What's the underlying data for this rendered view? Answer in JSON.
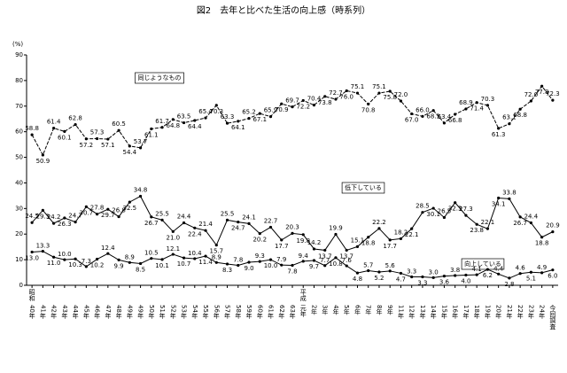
{
  "chart_data": {
    "type": "line",
    "title": "図2　去年と比べた生活の向上感（時系列）",
    "y_label": "(%)",
    "era_labels": [
      "昭和",
      "平成"
    ],
    "categories": [
      "40年",
      "41年",
      "42年",
      "43年",
      "44年",
      "45年",
      "46年",
      "47年",
      "48年",
      "49年",
      "49年",
      "50年",
      "51年",
      "52年",
      "53年",
      "54年",
      "55年",
      "56年",
      "57年",
      "58年",
      "59年",
      "60年",
      "61年",
      "62年",
      "63年",
      "元年",
      "2年",
      "3年",
      "4年",
      "5年",
      "6年",
      "7年",
      "8年",
      "9年",
      "11年",
      "12年",
      "13年",
      "14年",
      "15年",
      "16年",
      "17年",
      "18年",
      "19年",
      "20年",
      "21年",
      "22年",
      "23年",
      "24年",
      "今回調査"
    ],
    "ylim": [
      0,
      90
    ],
    "yticks": [
      0,
      10,
      20,
      30,
      40,
      50,
      60,
      70,
      80,
      90
    ],
    "series": [
      {
        "name": "同じようなもの",
        "color": "#000000",
        "values": [
          58.8,
          50.9,
          61.4,
          60.1,
          62.8,
          57.2,
          57.3,
          57.1,
          60.5,
          54.4,
          53.7,
          61.1,
          61.7,
          64.8,
          63.5,
          64.4,
          65.4,
          70.3,
          63.3,
          64.1,
          65.2,
          67.1,
          65.9,
          70.9,
          69.7,
          72.2,
          70.4,
          73.8,
          72.7,
          76.0,
          75.1,
          70.8,
          75.1,
          75.8,
          72.0,
          67.0,
          66.0,
          68.3,
          63.4,
          66.8,
          68.9,
          71.4,
          70.3,
          61.3,
          63.1,
          68.8,
          72.0,
          77.8,
          72.3
        ],
        "value_labels": [
          "58.8",
          "50.9",
          "61.4",
          "60.1",
          "62.8",
          "57.2",
          "57.3",
          "57.1",
          "60.5",
          "54.4",
          "53.7",
          "61.1",
          "61.7",
          "64.8",
          "63.5",
          "64.4",
          "65.4",
          "70.3",
          "63.3",
          "64.1",
          "65.2",
          "67.1",
          "65.9",
          "70.9",
          "69.7",
          "72.2",
          "70.4",
          "73.8",
          "72.7",
          "76.0",
          "75.1",
          "70.8",
          "75.1",
          "75.8",
          "72.0",
          "67.0",
          "66.0",
          "68.3",
          "63.4",
          "66.8",
          "68.9",
          "71.4",
          "70.3",
          "61.3",
          "63.1",
          "68.8",
          "72.0",
          "77.8",
          "72.3"
        ]
      },
      {
        "name": "低下している",
        "color": "#000000",
        "values": [
          24.5,
          29.3,
          24.2,
          26.3,
          24.7,
          30.7,
          27.8,
          29.7,
          26.8,
          32.5,
          34.8,
          26.7,
          25.5,
          21.0,
          24.4,
          22.4,
          21.4,
          15.7,
          25.5,
          24.7,
          24.1,
          20.2,
          22.7,
          17.7,
          20.3,
          19.8,
          14.2,
          13.7,
          19.9,
          13.7,
          15.1,
          18.8,
          22.2,
          17.7,
          18.2,
          22.1,
          28.5,
          30.1,
          26.5,
          32.3,
          27.3,
          23.8,
          22.1,
          34.1,
          33.8,
          26.7,
          24.4,
          18.8,
          20.9
        ],
        "value_labels": [
          "24.5",
          "29.3",
          "24.2",
          "26.3",
          "24.7",
          "30.7",
          "27.8",
          "29.7",
          "26.8",
          "32.5",
          "34.8",
          "26.7",
          "25.5",
          "21.0",
          "24.4",
          "22.4",
          "21.4",
          "15.7",
          "25.5",
          "24.7",
          "24.1",
          "20.2",
          "22.7",
          "17.7",
          "20.3",
          "19.8",
          "14.2",
          "13.7",
          "19.9",
          "13.7",
          "15.1",
          "18.8",
          "22.2",
          "17.7",
          "18.2",
          "22.1",
          "28.5",
          "30.1",
          "26.5",
          "32.3",
          "27.3",
          "23.8",
          "22.1",
          "34.1",
          "33.8",
          "26.7",
          "24.4",
          "18.8",
          "20.9"
        ]
      },
      {
        "name": "向上している",
        "color": "#000000",
        "values": [
          13.0,
          13.3,
          11.0,
          10.0,
          10.3,
          7.3,
          10.2,
          12.4,
          9.9,
          8.9,
          8.5,
          10.5,
          10.1,
          12.1,
          10.7,
          10.4,
          11.4,
          8.9,
          8.3,
          7.8,
          9.0,
          9.3,
          10.0,
          7.9,
          7.8,
          9.4,
          9.7,
          7.7,
          10.8,
          7.6,
          4.8,
          5.7,
          5.2,
          5.6,
          4.7,
          3.3,
          3.3,
          3.0,
          3.6,
          3.8,
          4.0,
          4.1,
          6.2,
          4.4,
          2.8,
          4.6,
          5.1,
          4.9,
          6.0
        ],
        "value_labels": [
          "13.0",
          "13.3",
          "11.0",
          "10.0",
          "10.3",
          "7.3",
          "10.2",
          "12.4",
          "9.9",
          "8.9",
          "8.5",
          "10.5",
          "10.1",
          "12.1",
          "10.7",
          "10.4",
          "11.4",
          "8.9",
          "8.3",
          "7.8",
          "9.0",
          "9.3",
          "10.0",
          "7.9",
          "7.8",
          "9.4",
          "9.7",
          "7.7",
          "10.8",
          "7.6",
          "4.8",
          "5.7",
          "5.2",
          "5.6",
          "4.7",
          "3.3",
          "3.3",
          "3.0",
          "3.6",
          "3.8",
          "4.0",
          "4.1",
          "6.2",
          "4.4",
          "2.8",
          "4.6",
          "5.1",
          "4.9",
          "6.0"
        ]
      }
    ]
  }
}
